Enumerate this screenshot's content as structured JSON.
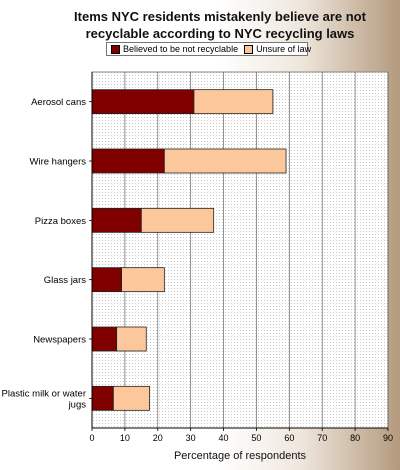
{
  "chart_data": {
    "type": "bar",
    "orientation": "horizontal",
    "stacked": true,
    "title": "Items NYC residents mistakenly believe are not recyclable according to NYC recycling laws",
    "xlabel": "Percentage of respondents",
    "ylabel": "",
    "xlim": [
      0,
      90
    ],
    "xticks": [
      "0",
      "10",
      "20",
      "30",
      "40",
      "50",
      "60",
      "70",
      "80",
      "90"
    ],
    "grid": "vertical",
    "legend_position": "top",
    "categories": [
      [
        "Aerosol cans"
      ],
      [
        "Wire hangers"
      ],
      [
        "Pizza boxes"
      ],
      [
        "Glass jars"
      ],
      [
        "Newspapers"
      ],
      [
        "Plastic milk or water",
        "jugs"
      ]
    ],
    "series": [
      {
        "name": "Believed to be not recyclable",
        "color": "#800000",
        "values": [
          31,
          22,
          15,
          9,
          7.5,
          6.5
        ]
      },
      {
        "name": "Unsure of law",
        "color": "#fcc89b",
        "values": [
          24,
          37,
          22,
          13,
          9,
          11
        ]
      }
    ]
  }
}
